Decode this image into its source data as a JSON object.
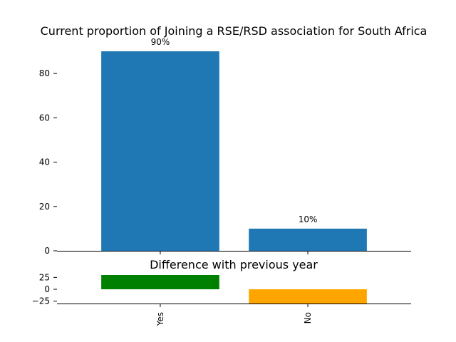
{
  "chart_data": [
    {
      "type": "bar",
      "title": "Current proportion of Joining a RSE/RSD association for South Africa",
      "categories": [
        "Yes",
        "No"
      ],
      "values": [
        90,
        10
      ],
      "data_labels": [
        "90%",
        "10%"
      ],
      "color": "#1f77b4",
      "ylim": [
        0,
        90
      ],
      "yticks": [
        0,
        20,
        40,
        60,
        80
      ],
      "grid": false
    },
    {
      "type": "bar",
      "title": "Difference with previous year",
      "categories": [
        "Yes",
        "No"
      ],
      "values": [
        30,
        -30
      ],
      "colors": [
        "#008000",
        "#ffa500"
      ],
      "ylim": [
        -30,
        30
      ],
      "yticks": [
        -25,
        0,
        25
      ],
      "ytick_labels": [
        "−25",
        "0",
        "25"
      ],
      "xtick_labels": [
        "Yes",
        "No"
      ],
      "grid": false
    }
  ]
}
